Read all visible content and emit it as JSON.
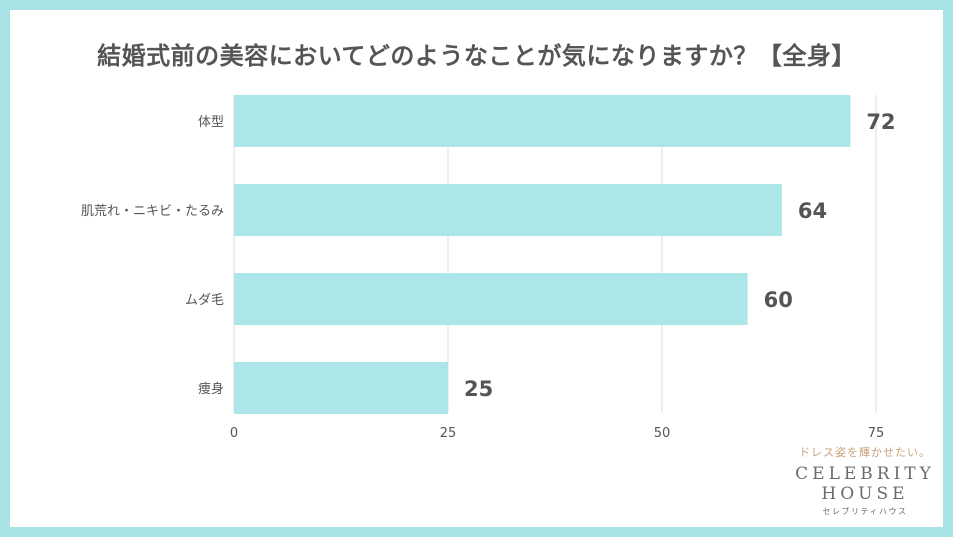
{
  "title": "結婚式前の美容においてどのようなことが気になりますか？【全身】",
  "colors": {
    "frame": "#a8e2e4",
    "bar": "#ade6e8",
    "text": "#555555",
    "grid": "#dddddd",
    "tagline": "#c9a27a"
  },
  "chart_data": {
    "type": "bar",
    "orientation": "horizontal",
    "title": "結婚式前の美容においてどのようなことが気になりますか？【全身】",
    "categories": [
      "体型",
      "肌荒れ・ニキビ・たるみ",
      "ムダ毛",
      "痩身"
    ],
    "values": [
      72,
      64,
      60,
      25
    ],
    "xlim": [
      0,
      75
    ],
    "xticks": [
      0,
      25,
      50,
      75
    ],
    "grid": true,
    "data_labels": true,
    "legend": "none"
  },
  "brand": {
    "tagline": "ドレス姿を輝かせたい。",
    "name_line1": "CELEBRITY",
    "name_line2": "HOUSE",
    "kana": "セレブリティハウス"
  }
}
